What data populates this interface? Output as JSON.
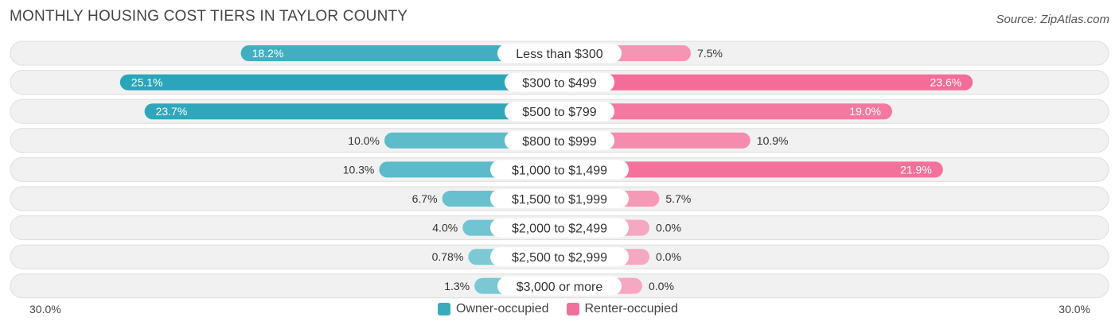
{
  "header": {
    "title": "MONTHLY HOUSING COST TIERS IN TAYLOR COUNTY",
    "source": "Source: ZipAtlas.com"
  },
  "axis": {
    "left_label": "30.0%",
    "right_label": "30.0%"
  },
  "legend": {
    "items": [
      {
        "label": "Owner-occupied",
        "color": "#3aabbe"
      },
      {
        "label": "Renter-occupied",
        "color": "#f0709a"
      }
    ]
  },
  "chart_data": {
    "type": "bar",
    "orientation": "horizontal-diverging",
    "title": "MONTHLY HOUSING COST TIERS IN TAYLOR COUNTY",
    "xlim": [
      -30,
      30
    ],
    "categories": [
      "Less than $300",
      "$300 to $499",
      "$500 to $799",
      "$800 to $999",
      "$1,000 to $1,499",
      "$1,500 to $1,999",
      "$2,000 to $2,499",
      "$2,500 to $2,999",
      "$3,000 or more"
    ],
    "series": [
      {
        "name": "Owner-occupied",
        "color": "#3aabbe",
        "values": [
          18.2,
          25.1,
          23.7,
          10.0,
          10.3,
          6.7,
          4.0,
          0.78,
          1.3
        ],
        "labels": [
          "18.2%",
          "25.1%",
          "23.7%",
          "10.0%",
          "10.3%",
          "6.7%",
          "4.0%",
          "0.78%",
          "1.3%"
        ]
      },
      {
        "name": "Renter-occupied",
        "color": "#f0709a",
        "values": [
          7.5,
          23.6,
          19.0,
          10.9,
          21.9,
          5.7,
          0.0,
          0.0,
          0.0
        ],
        "labels": [
          "7.5%",
          "23.6%",
          "19.0%",
          "10.9%",
          "21.9%",
          "5.7%",
          "0.0%",
          "0.0%",
          "0.0%"
        ]
      }
    ],
    "legend_position": "bottom-center"
  }
}
